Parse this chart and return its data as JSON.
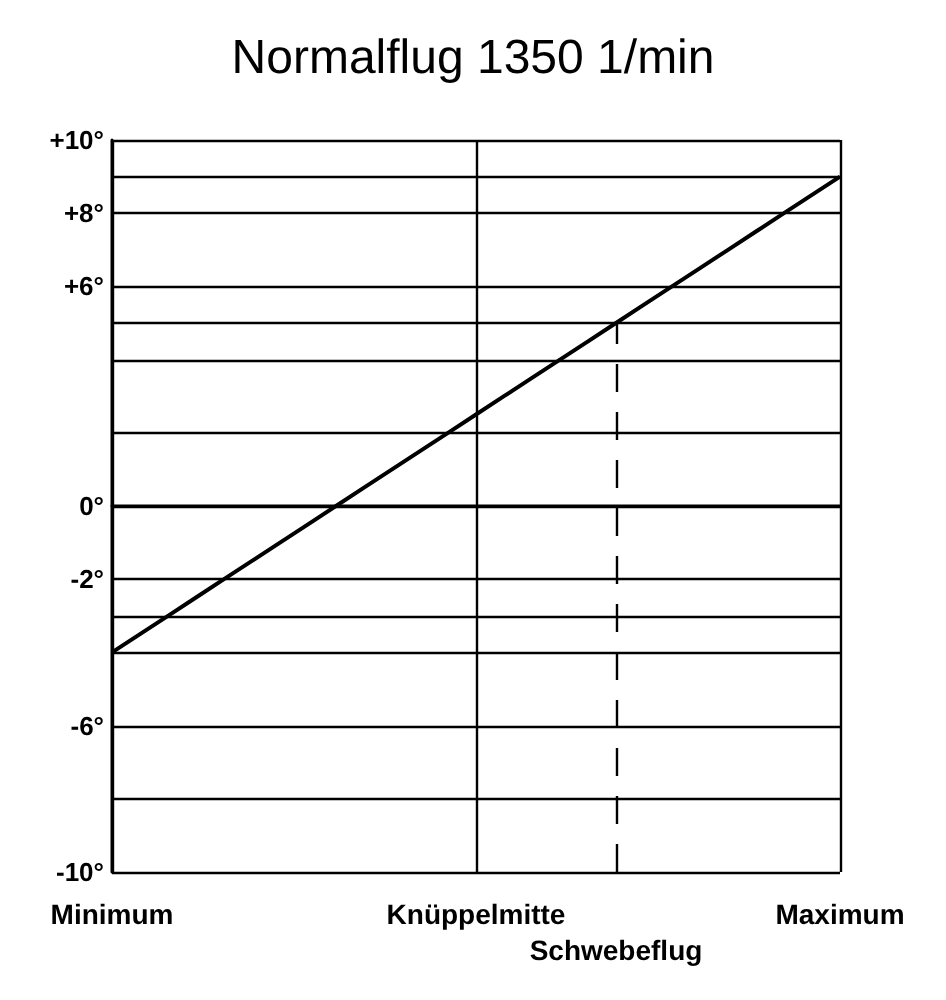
{
  "chart_data": {
    "type": "line",
    "title": "Normalflug 1350 1/min",
    "categories": [
      "Minimum",
      null,
      null,
      null,
      null,
      null,
      null,
      null,
      null,
      null,
      null,
      null,
      null,
      "Knüppelmitte",
      null,
      null,
      null,
      null,
      "Schwebeflug",
      null,
      null,
      null,
      null,
      null,
      null,
      null,
      "Maximum"
    ],
    "series": [
      {
        "color": "#000000",
        "values": [
          -4,
          -3.5,
          -3,
          -2.5,
          -2,
          -1.5,
          -1,
          -0.5,
          0,
          0.5,
          1,
          1.5,
          2,
          2.5,
          3,
          3.5,
          4,
          4.5,
          5,
          5.5,
          6,
          6.5,
          7,
          7.5,
          8,
          8.5,
          9
        ]
      }
    ],
    "ylim": [
      -10,
      10
    ],
    "yticks": [
      {
        "value": 10,
        "label": "+10°"
      },
      {
        "value": 9,
        "label": null
      },
      {
        "value": 8,
        "label": "+8°"
      },
      {
        "value": 6,
        "label": "+6°"
      },
      {
        "value": 5,
        "label": null
      },
      {
        "value": 4,
        "label": null
      },
      {
        "value": 2,
        "label": null
      },
      {
        "value": 0,
        "label": "0°"
      },
      {
        "value": -2,
        "label": "-2°"
      },
      {
        "value": -3,
        "label": null
      },
      {
        "value": -4,
        "label": null
      },
      {
        "value": -6,
        "label": "-6°"
      },
      {
        "value": -8,
        "label": null
      },
      {
        "value": -10,
        "label": "-10°"
      }
    ],
    "ref_lines": [
      {
        "axis": "x",
        "value": "Schwebeflug",
        "line_style": "dashed",
        "color": "#000000"
      }
    ],
    "grid": true,
    "marker": "none",
    "line_style": "solid"
  }
}
